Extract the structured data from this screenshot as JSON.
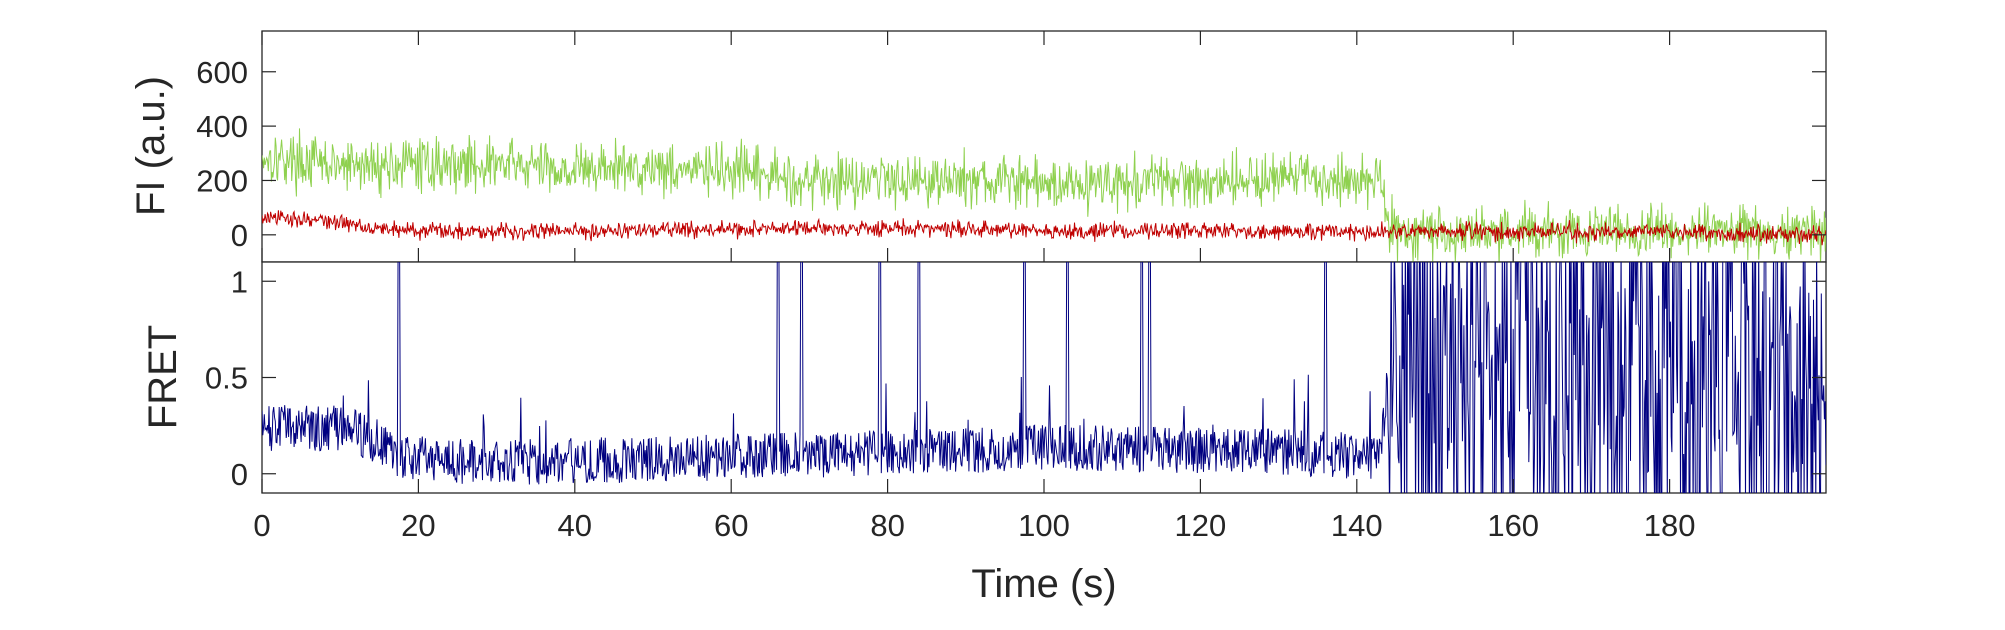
{
  "chart_data": [
    {
      "type": "line",
      "ylabel": "FI (a.u.)",
      "xlim": [
        0,
        200
      ],
      "ylim": [
        -100,
        750
      ],
      "yticks": [
        0,
        200,
        400,
        600
      ],
      "grid": false,
      "colors": {
        "donor": "#8fd14f",
        "acceptor": "#c00000"
      },
      "series": [
        {
          "color": "#8fd14f",
          "x": [
            0,
            10,
            20,
            30,
            40,
            50,
            60,
            70,
            80,
            90,
            100,
            110,
            120,
            130,
            140,
            143,
            144,
            150,
            160,
            170,
            180,
            190,
            200
          ],
          "y": [
            290,
            250,
            260,
            260,
            240,
            250,
            230,
            200,
            210,
            200,
            190,
            190,
            200,
            210,
            200,
            220,
            20,
            10,
            10,
            10,
            10,
            10,
            10
          ],
          "noise": 80
        },
        {
          "color": "#c00000",
          "x": [
            0,
            5,
            10,
            15,
            20,
            40,
            60,
            80,
            100,
            120,
            140,
            160,
            180,
            200
          ],
          "y": [
            60,
            60,
            45,
            25,
            15,
            15,
            20,
            25,
            15,
            15,
            10,
            10,
            10,
            0
          ],
          "noise": 25
        }
      ]
    },
    {
      "type": "line",
      "xlabel": "Time (s)",
      "ylabel": "FRET",
      "xlim": [
        0,
        200
      ],
      "ylim": [
        -0.1,
        1.1
      ],
      "xticks": [
        0,
        20,
        40,
        60,
        80,
        100,
        120,
        140,
        160,
        180
      ],
      "yticks": [
        0,
        0.5,
        1
      ],
      "ytick_labels": [
        "0",
        "0.5",
        "1"
      ],
      "grid": false,
      "series": [
        {
          "color": "#000080",
          "x": [
            0,
            10,
            14,
            17,
            30,
            60,
            100,
            130,
            143,
            144,
            200
          ],
          "y": [
            0.2,
            0.2,
            0.15,
            0.05,
            0.02,
            0.05,
            0.1,
            0.08,
            0.05,
            0.5,
            0.5
          ],
          "noise_before": 0.12,
          "high_noise_after": 0.55,
          "spikes_x": [
            17.5,
            66,
            69,
            79,
            84,
            97.5,
            103,
            112.5,
            113.5,
            136
          ]
        }
      ]
    }
  ]
}
